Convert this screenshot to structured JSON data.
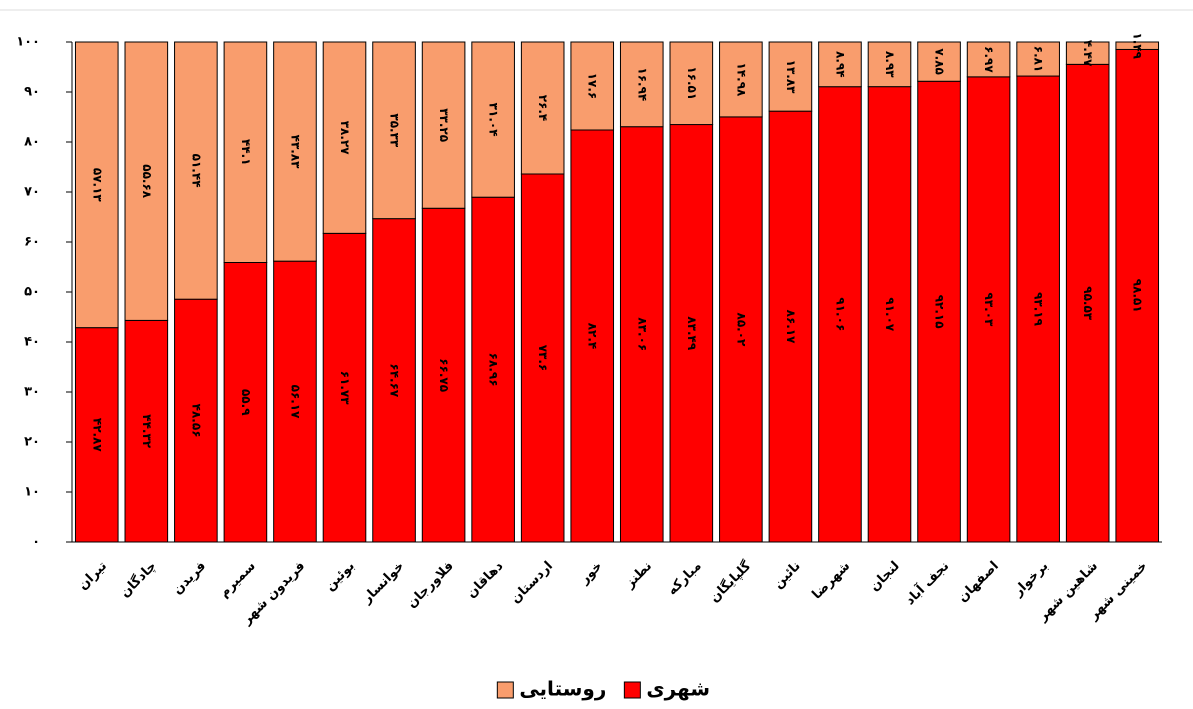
{
  "chart_data": {
    "type": "stacked_bar",
    "categories": [
      "تیران",
      "چادگان",
      "فریدن",
      "سمیرم",
      "فریدون شهر",
      "بوئین",
      "خوانسار",
      "فلاورجان",
      "دهاقان",
      "اردستان",
      "خور",
      "نطنز",
      "مبارکه",
      "گلپایگان",
      "نائین",
      "شهرضا",
      "لنجان",
      "نجف آباد",
      "اصفهان",
      "برخوار",
      "شاهین شهر",
      "خمینی شهر"
    ],
    "series": [
      {
        "name": "شهری",
        "color": "#ff0000",
        "values": [
          42.87,
          44.32,
          48.56,
          55.9,
          56.17,
          61.73,
          64.67,
          66.75,
          68.96,
          73.6,
          82.4,
          83.06,
          83.49,
          85.02,
          86.17,
          91.06,
          91.07,
          92.15,
          93.03,
          93.19,
          95.53,
          98.51
        ],
        "value_labels": [
          "۴۲.۸۷",
          "۴۴.۳۲",
          "۴۸.۵۶",
          "۵۵.۹",
          "۵۶.۱۷",
          "۶۱.۷۳",
          "۶۴.۶۷",
          "۶۶.۷۵",
          "۶۸.۹۶",
          "۷۳.۶",
          "۸۲.۴",
          "۸۳.۰۶",
          "۸۳.۴۹",
          "۸۵.۰۲",
          "۸۶.۱۷",
          "۹۱.۰۶",
          "۹۱.۰۷",
          "۹۲.۱۵",
          "۹۳.۰۳",
          "۹۳.۱۹",
          "۹۵.۵۳",
          "۹۸.۵۱"
        ]
      },
      {
        "name": "روستایی",
        "color": "#f99d6d",
        "values": [
          57.13,
          55.68,
          51.44,
          44.1,
          43.83,
          38.27,
          35.33,
          33.25,
          31.04,
          26.4,
          17.6,
          16.94,
          16.51,
          14.98,
          13.83,
          8.94,
          8.93,
          7.85,
          6.97,
          6.81,
          4.47,
          1.49
        ],
        "value_labels": [
          "۵۷.۱۳",
          "۵۵.۶۸",
          "۵۱.۴۴",
          "۴۴.۱",
          "۴۳.۸۳",
          "۳۸.۲۷",
          "۳۵.۳۳",
          "۳۳.۲۵",
          "۳۱.۰۴",
          "۲۶.۴",
          "۱۷.۶",
          "۱۶.۹۴",
          "۱۶.۵۱",
          "۱۴.۹۸",
          "۱۳.۸۳",
          "۸.۹۴",
          "۸.۹۳",
          "۷.۸۵",
          "۶.۹۷",
          "۶.۸۱",
          "۴.۴۷",
          "۱.۴۹"
        ]
      }
    ],
    "ylim": [
      0,
      100
    ],
    "yticks": [
      {
        "value": 0,
        "label": "۰"
      },
      {
        "value": 10,
        "label": "۱۰"
      },
      {
        "value": 20,
        "label": "۲۰"
      },
      {
        "value": 30,
        "label": "۳۰"
      },
      {
        "value": 40,
        "label": "۴۰"
      },
      {
        "value": 50,
        "label": "۵۰"
      },
      {
        "value": 60,
        "label": "۶۰"
      },
      {
        "value": 70,
        "label": "۷۰"
      },
      {
        "value": 80,
        "label": "۸۰"
      },
      {
        "value": 90,
        "label": "۹۰"
      },
      {
        "value": 100,
        "label": "۱۰۰"
      }
    ],
    "legend": "bottom"
  }
}
